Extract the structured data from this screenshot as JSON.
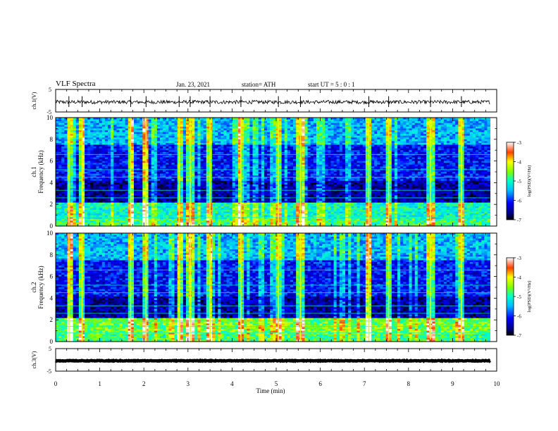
{
  "header": {
    "title": "VLF Spectra",
    "date": "Jan. 23, 2021",
    "station": "station= ATH",
    "start_time": "start  UT =   5 : 0  : 1"
  },
  "chart_data": [
    {
      "type": "line",
      "panel": "waveform-ch1",
      "ylabel": "ch.1(V)",
      "yticks": [
        "5",
        "-5"
      ],
      "ylim": [
        -5,
        5
      ],
      "xlim": [
        0,
        10
      ],
      "baseline_y": -0.6,
      "noise_amplitude": 0.8,
      "spike_times_min": [
        0.3,
        0.6,
        1.7,
        2.05,
        2.8,
        3.05,
        3.5,
        4.2,
        5.05,
        5.55,
        7.1,
        7.55,
        8.5,
        9.2
      ]
    },
    {
      "type": "heatmap",
      "panel": "spectrogram-ch1",
      "ylabel": "ch.1\nFrequency (kHz)",
      "yticks": [
        "0",
        "2",
        "4",
        "6",
        "8",
        "10"
      ],
      "ylim": [
        0,
        10
      ],
      "xlim": [
        0,
        9.85
      ],
      "colorbar": {
        "label": "log(PSD)(V²/Hz)",
        "ticks": [
          "-3",
          "-4",
          "-5",
          "-6",
          "-7"
        ],
        "range": [
          -7,
          -3
        ]
      },
      "vertical_bursts_min": [
        0.3,
        0.6,
        1.7,
        2.05,
        2.8,
        3.05,
        3.5,
        4.2,
        5.05,
        5.55,
        7.1,
        7.55,
        8.5,
        9.2
      ]
    },
    {
      "type": "heatmap",
      "panel": "spectrogram-ch2",
      "ylabel": "ch.2\nFrequency (kHz)",
      "yticks": [
        "0",
        "2",
        "4",
        "6",
        "8",
        "10"
      ],
      "ylim": [
        0,
        10
      ],
      "xlim": [
        0,
        9.85
      ],
      "colorbar": {
        "label": "log(PSD)(V²/Hz)",
        "ticks": [
          "-3",
          "-4",
          "-5",
          "-6",
          "-7"
        ],
        "range": [
          -7,
          -3
        ]
      },
      "vertical_bursts_min": [
        0.3,
        0.6,
        1.7,
        2.05,
        2.8,
        3.05,
        3.5,
        4.2,
        5.05,
        5.55,
        7.1,
        7.55,
        8.5,
        9.2
      ]
    },
    {
      "type": "line",
      "panel": "waveform-ch3",
      "ylabel": "ch.3(V)",
      "yticks": [
        "5",
        "-5"
      ],
      "ylim": [
        -5,
        5
      ],
      "xlim": [
        0,
        10
      ],
      "baseline_y": -0.4,
      "noise_amplitude": 0.15,
      "spike_times_min": []
    }
  ],
  "x_axis": {
    "label": "Time  (min)",
    "ticks": [
      "0",
      "1",
      "2",
      "3",
      "4",
      "5",
      "6",
      "7",
      "8",
      "9",
      "10"
    ]
  }
}
